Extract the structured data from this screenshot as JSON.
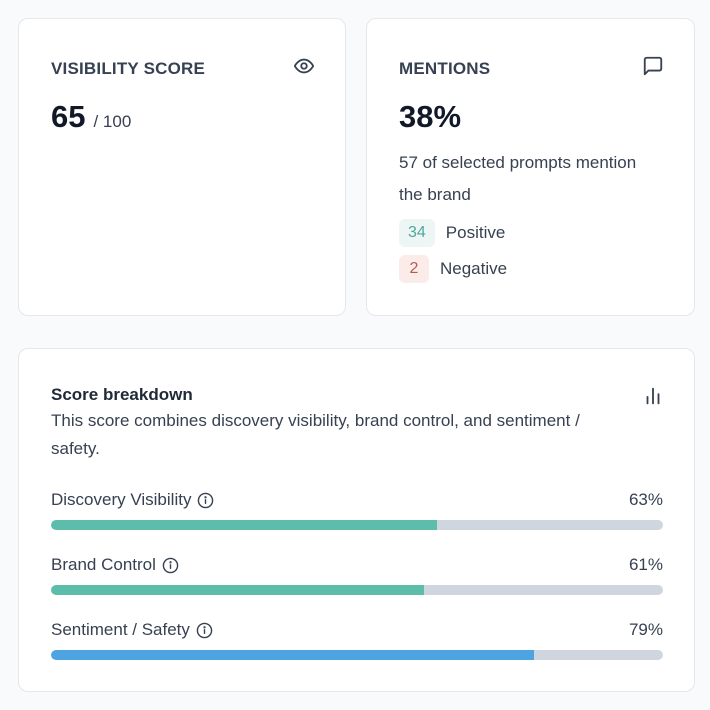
{
  "visibility": {
    "title": "VISIBILITY SCORE",
    "icon": "eye-icon",
    "value": "65",
    "suffix": "/ 100"
  },
  "mentions": {
    "title": "MENTIONS",
    "icon": "message-square-icon",
    "value": "38%",
    "description": "57 of selected prompts mention the brand",
    "positive": {
      "count": "34",
      "label": "Positive"
    },
    "negative": {
      "count": "2",
      "label": "Negative"
    }
  },
  "breakdown": {
    "title": "Score breakdown",
    "description": "This score combines discovery visibility, brand control, and sentiment / safety.",
    "icon": "bar-chart-icon",
    "metrics": [
      {
        "label": "Discovery Visibility",
        "value_text": "63%",
        "value": 63,
        "color": "#5cbdaa"
      },
      {
        "label": "Brand Control",
        "value_text": "61%",
        "value": 61,
        "color": "#5cbdaa"
      },
      {
        "label": "Sentiment / Safety",
        "value_text": "79%",
        "value": 79,
        "color": "#4ea4e0"
      }
    ]
  }
}
